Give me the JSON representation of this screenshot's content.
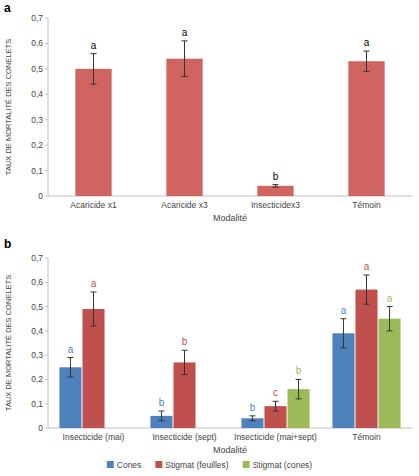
{
  "chart_data": [
    {
      "type": "bar",
      "title": "a",
      "x_label": "Modalité",
      "y_label": "TAUX DE MORTALITÉ DES CONELETS",
      "categories": [
        "Acaricide x1",
        "Acaricide x3",
        "Insecticidex3",
        "Témoin"
      ],
      "values": [
        0.5,
        0.54,
        0.04,
        0.53
      ],
      "errors": [
        0.06,
        0.07,
        0.005,
        0.04
      ],
      "letters": [
        "a",
        "a",
        "b",
        "a"
      ],
      "color": "#cf6461",
      "ylim": [
        0,
        0.7
      ],
      "yticks": [
        0,
        {
          "value": 0.1,
          "label": "0,1"
        },
        {
          "value": 0.2,
          "label": "0,2"
        },
        {
          "value": 0.3,
          "label": "0,3"
        },
        {
          "value": 0.4,
          "label": "0,4"
        },
        {
          "value": 0.5,
          "label": "0,5"
        },
        {
          "value": 0.6,
          "label": "0,6"
        },
        {
          "value": 0.7,
          "label": "0,7"
        }
      ],
      "grid": false
    },
    {
      "type": "bar",
      "title": "b",
      "x_label": "Modalité",
      "y_label": "TAUX DE MORTALITÉ DES CONELETS",
      "categories": [
        "Insecticide (mai)",
        "Insecticide (sept)",
        "Insecticide (mai+sept)",
        "Témoin"
      ],
      "series": [
        {
          "name": "Cones",
          "color": "#4f81bd",
          "values": [
            0.25,
            0.05,
            0.04,
            0.39
          ],
          "errors": [
            0.04,
            0.02,
            0.01,
            0.06
          ],
          "letters": [
            "a",
            "b",
            "b",
            "a"
          ]
        },
        {
          "name": "Stigmat (feuilles)",
          "color": "#c0504d",
          "values": [
            0.49,
            0.27,
            0.09,
            0.57
          ],
          "errors": [
            0.07,
            0.05,
            0.02,
            0.06
          ],
          "letters": [
            "a",
            "b",
            "c",
            "a"
          ]
        },
        {
          "name": "Stigmat (cones)",
          "color": "#9bbb59",
          "values": [
            null,
            null,
            0.16,
            0.45
          ],
          "errors": [
            null,
            null,
            0.04,
            0.05
          ],
          "letters": [
            null,
            null,
            "b",
            "a"
          ]
        }
      ],
      "legend": "bottom",
      "ylim": [
        0,
        0.7
      ],
      "yticks": [
        0,
        {
          "value": 0.1,
          "label": "0,1"
        },
        {
          "value": 0.2,
          "label": "0,2"
        },
        {
          "value": 0.3,
          "label": "0,3"
        },
        {
          "value": 0.4,
          "label": "0,4"
        },
        {
          "value": 0.5,
          "label": "0,5"
        },
        {
          "value": 0.6,
          "label": "0,6"
        },
        {
          "value": 0.7,
          "label": "0,7"
        }
      ],
      "grid": false
    }
  ]
}
